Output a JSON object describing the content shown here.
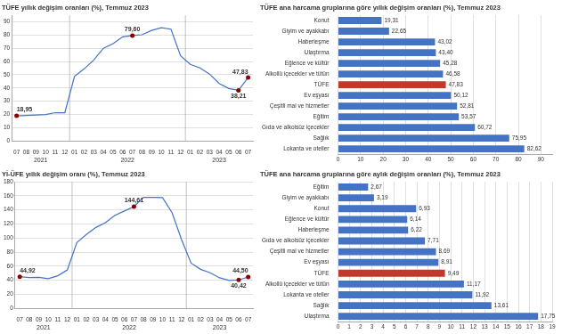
{
  "chart_data": [
    {
      "type": "line",
      "title": "TÜFE yıllık değişim oranları (%), Temmuz 2023",
      "categories": [
        "07",
        "08",
        "09",
        "10",
        "11",
        "12",
        "01",
        "02",
        "03",
        "04",
        "05",
        "06",
        "07",
        "08",
        "09",
        "10",
        "11",
        "12",
        "01",
        "02",
        "03",
        "04",
        "05",
        "06",
        "07"
      ],
      "category_groups": [
        {
          "label": "2021",
          "size": 6
        },
        {
          "label": "2022",
          "size": 12
        },
        {
          "label": "2023",
          "size": 7
        }
      ],
      "series": [
        {
          "type": "line",
          "color": "#4472c4",
          "values": [
            18.95,
            19.25,
            19.58,
            19.89,
            21.31,
            21.31,
            48.69,
            54.4,
            61.14,
            69.97,
            73.5,
            78.62,
            79.6,
            80.21,
            83.45,
            85.51,
            84.39,
            64.27,
            57.83,
            55.18,
            50.51,
            43.38,
            39.59,
            38.21,
            47.83
          ]
        },
        {
          "type": "scatter",
          "color": "#8b0000",
          "marker": "circle",
          "data_labels": true,
          "values": [
            18.95,
            null,
            null,
            null,
            null,
            null,
            null,
            null,
            null,
            null,
            null,
            null,
            79.6,
            null,
            null,
            null,
            null,
            null,
            null,
            null,
            null,
            null,
            null,
            38.21,
            47.83
          ],
          "value_labels": [
            "18,95",
            null,
            null,
            null,
            null,
            null,
            null,
            null,
            null,
            null,
            null,
            null,
            "79,60",
            null,
            null,
            null,
            null,
            null,
            null,
            null,
            null,
            null,
            null,
            "38,21",
            "47,83"
          ]
        }
      ],
      "ylim": [
        0,
        95
      ],
      "yticks": [
        0,
        10,
        20,
        30,
        40,
        50,
        60,
        70,
        80,
        90
      ],
      "grid": true
    },
    {
      "type": "bar",
      "orientation": "horizontal",
      "title": "TÜFE ana harcama gruplarına göre yıllık değişim oranları (%), Temmuz 2023",
      "categories": [
        "Konut",
        "Giyim ve ayakkabı",
        "Haberleşme",
        "Ulaştırma",
        "Eğlence ve kültür",
        "Alkollü içecekler ve tütün",
        "TÜFE",
        "Ev eşyası",
        "Çeşitli mal ve hizmetler",
        "Eğitim",
        "Gıda ve alkolsüz içecekler",
        "Sağlık",
        "Lokanta ve oteller"
      ],
      "values": [
        19.31,
        22.65,
        43.02,
        43.4,
        45.28,
        46.58,
        47.83,
        50.12,
        52.81,
        53.57,
        60.72,
        75.95,
        82.62
      ],
      "value_labels": [
        "19,31",
        "22,65",
        "43,02",
        "43,40",
        "45,28",
        "46,58",
        "47,83",
        "50,12",
        "52,81",
        "53,57",
        "60,72",
        "75,95",
        "82,62"
      ],
      "data_labels": true,
      "colors": [
        "#4472c4",
        "#4472c4",
        "#4472c4",
        "#4472c4",
        "#4472c4",
        "#4472c4",
        "#c0392b",
        "#4472c4",
        "#4472c4",
        "#4472c4",
        "#4472c4",
        "#4472c4",
        "#4472c4"
      ],
      "xlim": [
        0,
        95
      ],
      "xticks": [
        0,
        10,
        20,
        30,
        40,
        50,
        60,
        70,
        80,
        90
      ],
      "grid": true
    },
    {
      "type": "line",
      "title": "Yİ-ÜFE yıllık değişim oranı (%), Temmuz 2023",
      "categories": [
        "07",
        "08",
        "09",
        "10",
        "11",
        "12",
        "01",
        "02",
        "03",
        "04",
        "05",
        "06",
        "07",
        "08",
        "09",
        "10",
        "11",
        "12",
        "01",
        "02",
        "03",
        "04",
        "05",
        "06",
        "07"
      ],
      "category_groups": [
        {
          "label": "2021",
          "size": 6
        },
        {
          "label": "2022",
          "size": 12
        },
        {
          "label": "2023",
          "size": 7
        }
      ],
      "series": [
        {
          "type": "line",
          "color": "#4472c4",
          "values": [
            44.92,
            43.76,
            43.96,
            42.14,
            46.31,
            54.62,
            93.53,
            105.02,
            114.97,
            121.82,
            132.16,
            138.43,
            144.61,
            157.69,
            157.6,
            157.28,
            136.02,
            97.72,
            64.27,
            55.5,
            50.51,
            43.38,
            39.59,
            40.42,
            44.5
          ]
        },
        {
          "type": "scatter",
          "color": "#8b0000",
          "marker": "circle",
          "data_labels": true,
          "values": [
            44.92,
            null,
            null,
            null,
            null,
            null,
            null,
            null,
            null,
            null,
            null,
            null,
            144.61,
            null,
            null,
            null,
            null,
            null,
            null,
            null,
            null,
            null,
            null,
            40.42,
            44.5
          ],
          "value_labels": [
            "44,92",
            null,
            null,
            null,
            null,
            null,
            null,
            null,
            null,
            null,
            null,
            null,
            "144,61",
            null,
            null,
            null,
            null,
            null,
            null,
            null,
            null,
            null,
            null,
            "40,42",
            "44,50"
          ]
        }
      ],
      "ylim": [
        0,
        180
      ],
      "yticks": [
        0,
        20,
        40,
        60,
        80,
        100,
        120,
        140,
        160,
        180
      ],
      "grid": true
    },
    {
      "type": "bar",
      "orientation": "horizontal",
      "title": "TÜFE ana harcama gruplarına göre aylık değişim oranları (%), Temmuz 2023",
      "categories": [
        "Eğitim",
        "Giyim ve ayakkabı",
        "Konut",
        "Eğlence ve kültür",
        "Haberleşme",
        "Gıda ve alkolsüz içecekler",
        "Çeşitli mal ve hizmetler",
        "Ev eşyası",
        "TÜFE",
        "Alkollü içecekler ve tütün",
        "Lokanta ve oteller",
        "Sağlık",
        "Ulaştırma"
      ],
      "values": [
        2.67,
        3.19,
        6.93,
        6.14,
        6.22,
        7.71,
        8.69,
        8.91,
        9.49,
        11.17,
        11.92,
        13.61,
        17.75
      ],
      "value_labels": [
        "2,67",
        "3,19",
        "6,93",
        "6,14",
        "6,22",
        "7,71",
        "8,69",
        "8,91",
        "9,49",
        "11,17",
        "11,92",
        "13,61",
        "17,75"
      ],
      "data_labels": true,
      "colors": [
        "#4472c4",
        "#4472c4",
        "#4472c4",
        "#4472c4",
        "#4472c4",
        "#4472c4",
        "#4472c4",
        "#4472c4",
        "#c0392b",
        "#4472c4",
        "#4472c4",
        "#4472c4",
        "#4472c4"
      ],
      "xlim": [
        0,
        19
      ],
      "xticks": [
        0,
        1,
        2,
        3,
        4,
        5,
        6,
        7,
        8,
        9,
        10,
        11,
        12,
        13,
        14,
        15,
        16,
        17,
        18,
        19
      ],
      "grid": true
    }
  ]
}
